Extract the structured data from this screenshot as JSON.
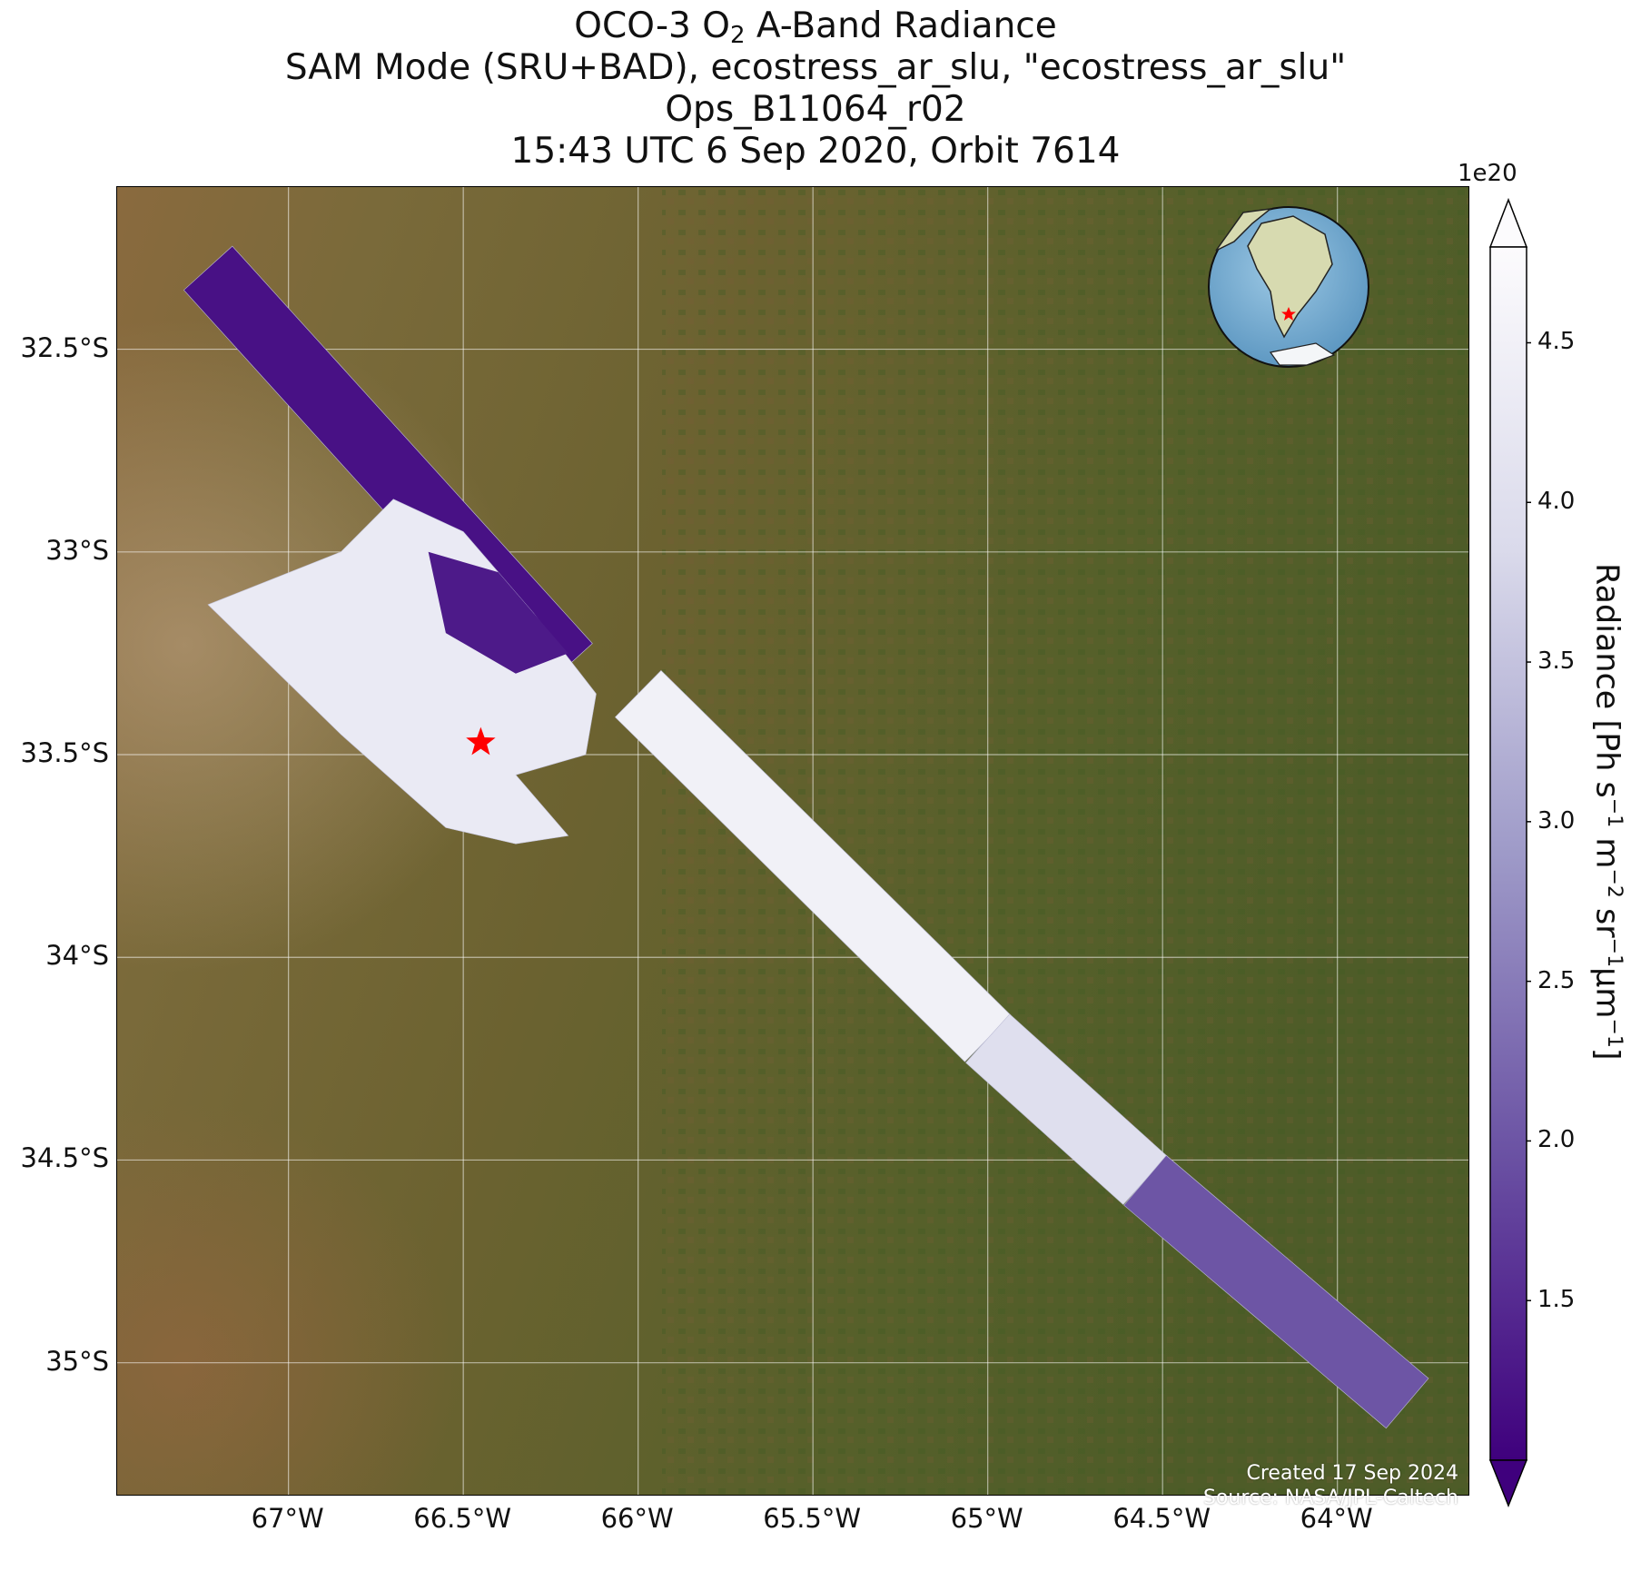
{
  "title": {
    "line1_prefix": "OCO-3 O",
    "line1_sub": "2",
    "line1_suffix": " A-Band Radiance",
    "line2": "SAM Mode (SRU+BAD), ecostress_ar_slu, \"ecostress_ar_slu\"",
    "line3": "Ops_B11064_r02",
    "line4": "15:43 UTC 6 Sep 2020, Orbit 7614"
  },
  "map": {
    "extent": {
      "lon_min": -67.49,
      "lon_max": -63.62,
      "lat_min": -35.33,
      "lat_max": -32.1
    },
    "lat_ticks": [
      {
        "value": -32.5,
        "label": "32.5°S"
      },
      {
        "value": -33.0,
        "label": "33°S"
      },
      {
        "value": -33.5,
        "label": "33.5°S"
      },
      {
        "value": -34.0,
        "label": "34°S"
      },
      {
        "value": -34.5,
        "label": "34.5°S"
      },
      {
        "value": -35.0,
        "label": "35°S"
      }
    ],
    "lon_ticks": [
      {
        "value": -67.0,
        "label": "67°W"
      },
      {
        "value": -66.5,
        "label": "66.5°W"
      },
      {
        "value": -66.0,
        "label": "66°W"
      },
      {
        "value": -65.5,
        "label": "65.5°W"
      },
      {
        "value": -65.0,
        "label": "65°W"
      },
      {
        "value": -64.5,
        "label": "64.5°W"
      },
      {
        "value": -64.0,
        "label": "64°W"
      }
    ],
    "target": {
      "lon": -66.45,
      "lat": -33.47,
      "marker": "star",
      "color": "#ff0000"
    },
    "swath_segments": [
      {
        "from_lon": -67.23,
        "from_lat": -32.3,
        "to_lon": -66.2,
        "to_lat": -33.28,
        "radiance": 1.2e+20
      },
      {
        "from_lon": -66.0,
        "from_lat": -33.35,
        "to_lon": -65.0,
        "to_lat": -34.2,
        "radiance": 4.5e+20
      },
      {
        "from_lon": -65.0,
        "from_lat": -34.2,
        "to_lon": -64.55,
        "to_lat": -34.55,
        "radiance": 4e+20
      },
      {
        "from_lon": -64.55,
        "from_lat": -34.55,
        "to_lon": -63.8,
        "to_lat": -35.1,
        "radiance": 2e+20
      }
    ],
    "sam_region": {
      "radiance_range": [
        1.2e+20,
        4.6e+20
      ]
    },
    "inset_globe": {
      "center": "South America",
      "marker": "star",
      "marker_color": "#ff0000"
    }
  },
  "colorbar": {
    "label_main": "Radiance [Ph s",
    "label_parts": [
      "Radiance [Ph s",
      "−1",
      " m",
      "−2",
      " sr",
      "−1",
      "μm",
      "−1",
      "]"
    ],
    "multiplier": "1e20",
    "min": 1.0,
    "max": 4.8,
    "ticks": [
      {
        "value": 1.5,
        "label": "1.5"
      },
      {
        "value": 2.0,
        "label": "2.0"
      },
      {
        "value": 2.5,
        "label": "2.5"
      },
      {
        "value": 3.0,
        "label": "3.0"
      },
      {
        "value": 3.5,
        "label": "3.5"
      },
      {
        "value": 4.0,
        "label": "4.0"
      },
      {
        "value": 4.5,
        "label": "4.5"
      }
    ],
    "colormap": "Purples_r",
    "color_low": "#3f007d",
    "color_high": "#fcfbfd",
    "extend": "both"
  },
  "credits": {
    "created": "Created 17 Sep 2024",
    "source": "Source: NASA/JPL-Caltech"
  }
}
